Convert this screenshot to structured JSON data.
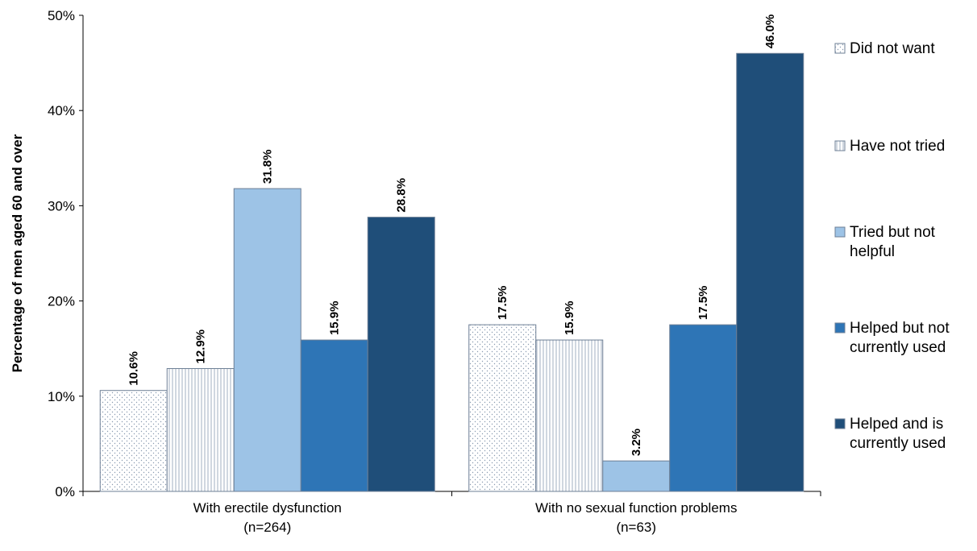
{
  "chart_data": {
    "type": "bar",
    "title": "",
    "xlabel": "",
    "ylabel": "Percentage of men aged 60 and over",
    "ylim": [
      0,
      50
    ],
    "yticks": [
      "0%",
      "10%",
      "20%",
      "30%",
      "40%",
      "50%"
    ],
    "grid": false,
    "legend_position": "right",
    "categories": [
      [
        "With erectile dysfunction",
        "(n=264)"
      ],
      [
        "With no sexual function problems",
        "(n=63)"
      ]
    ],
    "series": [
      {
        "name": [
          "Did not want"
        ],
        "values": [
          10.6,
          17.5
        ],
        "labels": [
          "10.6%",
          "17.5%"
        ],
        "color": "#ffffff",
        "pattern": "dots"
      },
      {
        "name": [
          "Have not tried"
        ],
        "values": [
          12.9,
          15.9
        ],
        "labels": [
          "12.9%",
          "15.9%"
        ],
        "color": "#ffffff",
        "pattern": "vertical-lines"
      },
      {
        "name": [
          "Tried but not",
          "helpful"
        ],
        "values": [
          31.8,
          3.2
        ],
        "labels": [
          "31.8%",
          "3.2%"
        ],
        "color": "#9dc3e6",
        "pattern": "none"
      },
      {
        "name": [
          "Helped but not",
          "currently used"
        ],
        "values": [
          15.9,
          17.5
        ],
        "labels": [
          "15.9%",
          "17.5%"
        ],
        "color": "#2e75b6",
        "pattern": "none"
      },
      {
        "name": [
          "Helped and is",
          "currently used"
        ],
        "values": [
          28.8,
          46.0
        ],
        "labels": [
          "28.8%",
          "46.0%"
        ],
        "color": "#1f4e79",
        "pattern": "none"
      }
    ]
  }
}
